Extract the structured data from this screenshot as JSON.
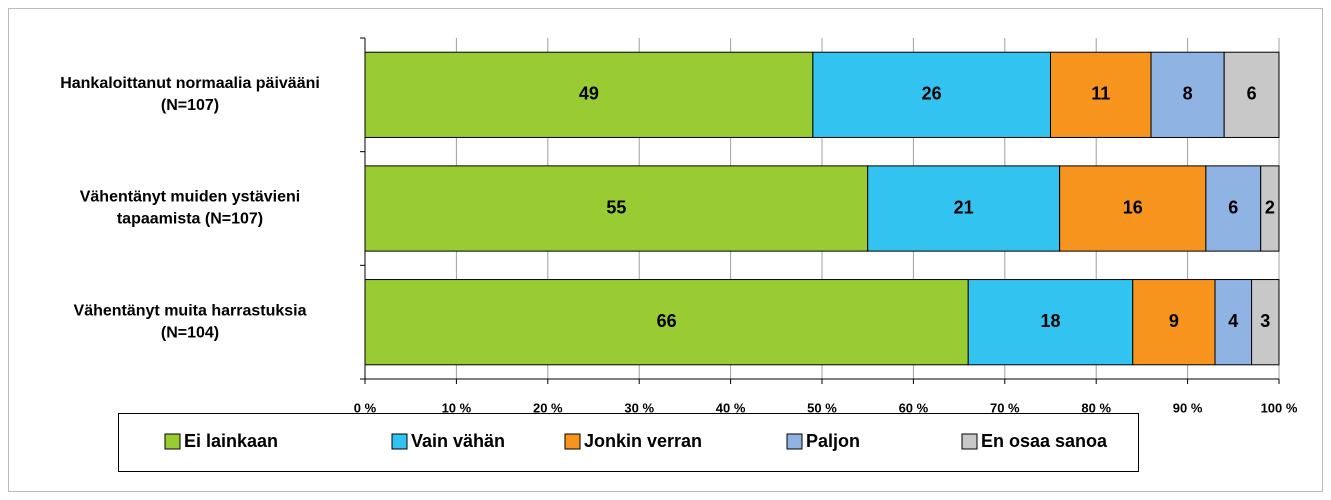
{
  "chart_data": {
    "type": "stacked-bar-horizontal",
    "categories": [
      [
        "Hankaloittanut normaalia päivääni",
        "(N=107)"
      ],
      [
        "Vähentänyt muiden ystävieni",
        "tapaamista (N=107)"
      ],
      [
        "Vähentänyt muita harrastuksia",
        "(N=104)"
      ]
    ],
    "series": [
      {
        "name": "Ei lainkaan",
        "color": "#99cc33",
        "values": [
          49,
          55,
          66
        ]
      },
      {
        "name": "Vain vähän",
        "color": "#33c3f0",
        "values": [
          26,
          21,
          18
        ]
      },
      {
        "name": "Jonkin verran",
        "color": "#f7941d",
        "values": [
          11,
          16,
          9
        ]
      },
      {
        "name": "Paljon",
        "color": "#8fb4e3",
        "values": [
          8,
          6,
          4
        ]
      },
      {
        "name": "En osaa sanoa",
        "color": "#c8c8c8",
        "values": [
          6,
          2,
          3
        ]
      }
    ],
    "xlim": [
      0,
      100
    ],
    "xticks": [
      {
        "value": 0,
        "label": "0 %"
      },
      {
        "value": 10,
        "label": "10 %"
      },
      {
        "value": 20,
        "label": "20 %"
      },
      {
        "value": 30,
        "label": "30 %"
      },
      {
        "value": 40,
        "label": "40 %"
      },
      {
        "value": 50,
        "label": "50 %"
      },
      {
        "value": 60,
        "label": "60 %"
      },
      {
        "value": 70,
        "label": "70 %"
      },
      {
        "value": 80,
        "label": "80 %"
      },
      {
        "value": 90,
        "label": "90 %"
      },
      {
        "value": 100,
        "label": "100 %"
      }
    ],
    "grid": true,
    "legend": "bottom"
  }
}
